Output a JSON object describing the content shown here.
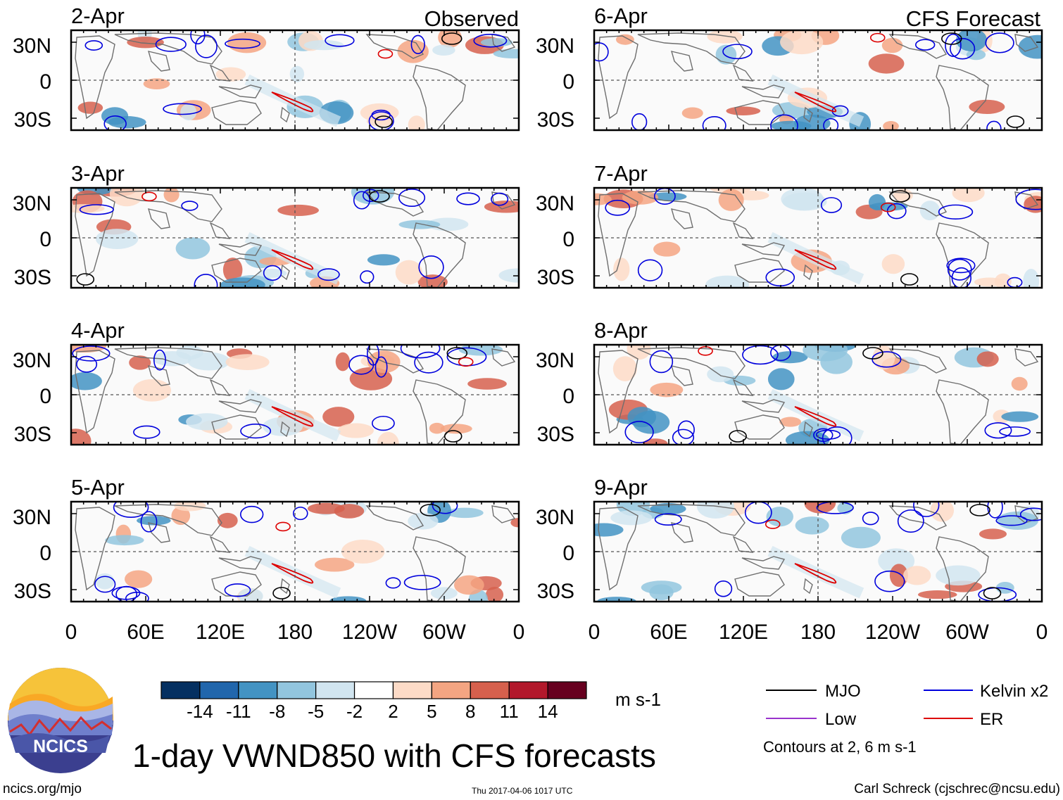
{
  "figure": {
    "title": "1-day VWND850 with CFS forecasts",
    "logo_text": "NCICS",
    "url": "ncics.org/mjo",
    "timestamp": "Thu 2017-04-06 1017 UTC",
    "author": "Carl Schreck (cjschrec@ncsu.edu)"
  },
  "columns": [
    {
      "header": "Observed",
      "panels": [
        "2-Apr",
        "3-Apr",
        "4-Apr",
        "5-Apr"
      ]
    },
    {
      "header": "CFS Forecast",
      "panels": [
        "6-Apr",
        "7-Apr",
        "8-Apr",
        "9-Apr"
      ]
    }
  ],
  "axes": {
    "lat_labels": [
      "30N",
      "0",
      "30S"
    ],
    "lon_labels": [
      "0",
      "60E",
      "120E",
      "180",
      "120W",
      "60W",
      "0"
    ]
  },
  "colorbar": {
    "levels": [
      "-14",
      "-11",
      "-8",
      "-5",
      "-2",
      "2",
      "5",
      "8",
      "11",
      "14"
    ],
    "colors": [
      "#053061",
      "#2166ac",
      "#4393c3",
      "#92c5de",
      "#d1e5f0",
      "#ffffff",
      "#fddbc7",
      "#f4a582",
      "#d6604d",
      "#b2182b",
      "#67001f"
    ],
    "units": "m s-1"
  },
  "legend": {
    "items": [
      {
        "label": "MJO",
        "color": "#000000"
      },
      {
        "label": "Kelvin x2",
        "color": "#0000dd"
      },
      {
        "label": "Low",
        "color": "#9933cc"
      },
      {
        "label": "ER",
        "color": "#dd0000"
      }
    ],
    "note": "Contours at 2, 6 m s-1"
  }
}
